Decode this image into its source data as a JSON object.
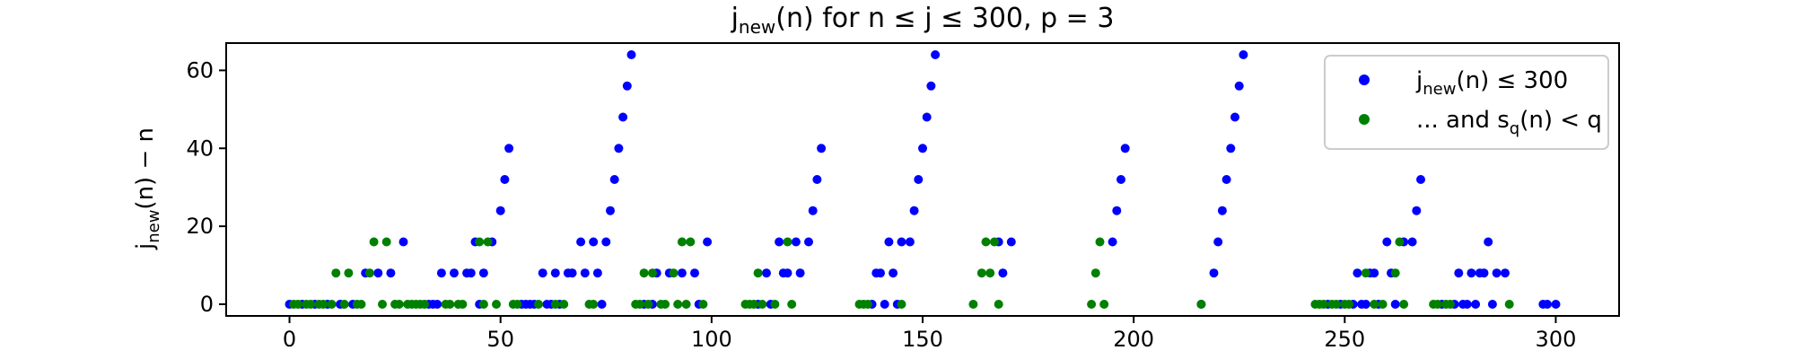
{
  "chart_data": {
    "type": "scatter",
    "title": "j_new(n) for n ≤ j ≤ 300, p = 3",
    "xlabel": "",
    "ylabel": "j_new(n) − n",
    "xlim": [
      -15,
      315
    ],
    "ylim": [
      -3,
      67
    ],
    "xticks": [
      0,
      50,
      100,
      150,
      200,
      250,
      300
    ],
    "yticks": [
      0,
      20,
      40,
      60
    ],
    "grid": false,
    "legend_position": "top-right",
    "series": [
      {
        "name": "j_new(n) ≤ 300",
        "color": "#0000ff",
        "points": [
          [
            0,
            0
          ],
          [
            3,
            0
          ],
          [
            6,
            0
          ],
          [
            9,
            0
          ],
          [
            12,
            0
          ],
          [
            15,
            0
          ],
          [
            18,
            8
          ],
          [
            21,
            8
          ],
          [
            24,
            8
          ],
          [
            27,
            16
          ],
          [
            33,
            0
          ],
          [
            34,
            0
          ],
          [
            35,
            0
          ],
          [
            36,
            8
          ],
          [
            39,
            8
          ],
          [
            42,
            8
          ],
          [
            43,
            8
          ],
          [
            44,
            16
          ],
          [
            45,
            0
          ],
          [
            46,
            8
          ],
          [
            48,
            16
          ],
          [
            50,
            24
          ],
          [
            51,
            32
          ],
          [
            52,
            40
          ],
          [
            55,
            0
          ],
          [
            56,
            0
          ],
          [
            57,
            0
          ],
          [
            58,
            0
          ],
          [
            60,
            8
          ],
          [
            61,
            0
          ],
          [
            62,
            0
          ],
          [
            63,
            8
          ],
          [
            64,
            0
          ],
          [
            66,
            8
          ],
          [
            67,
            8
          ],
          [
            69,
            16
          ],
          [
            70,
            8
          ],
          [
            72,
            16
          ],
          [
            73,
            8
          ],
          [
            74,
            0
          ],
          [
            75,
            16
          ],
          [
            76,
            24
          ],
          [
            77,
            32
          ],
          [
            78,
            40
          ],
          [
            79,
            48
          ],
          [
            80,
            56
          ],
          [
            81,
            64
          ],
          [
            84,
            0
          ],
          [
            86,
            0
          ],
          [
            87,
            8
          ],
          [
            90,
            8
          ],
          [
            93,
            8
          ],
          [
            96,
            8
          ],
          [
            97,
            0
          ],
          [
            99,
            16
          ],
          [
            111,
            0
          ],
          [
            113,
            8
          ],
          [
            114,
            0
          ],
          [
            116,
            16
          ],
          [
            117,
            8
          ],
          [
            118,
            8
          ],
          [
            120,
            16
          ],
          [
            121,
            8
          ],
          [
            123,
            16
          ],
          [
            124,
            24
          ],
          [
            125,
            32
          ],
          [
            126,
            40
          ],
          [
            138,
            0
          ],
          [
            139,
            8
          ],
          [
            140,
            8
          ],
          [
            141,
            0
          ],
          [
            142,
            16
          ],
          [
            143,
            8
          ],
          [
            144,
            0
          ],
          [
            145,
            16
          ],
          [
            147,
            16
          ],
          [
            148,
            24
          ],
          [
            149,
            32
          ],
          [
            150,
            40
          ],
          [
            151,
            48
          ],
          [
            152,
            56
          ],
          [
            153,
            64
          ],
          [
            168,
            16
          ],
          [
            169,
            8
          ],
          [
            171,
            16
          ],
          [
            195,
            16
          ],
          [
            196,
            24
          ],
          [
            197,
            32
          ],
          [
            198,
            40
          ],
          [
            216,
            0
          ],
          [
            219,
            8
          ],
          [
            220,
            16
          ],
          [
            221,
            24
          ],
          [
            222,
            32
          ],
          [
            223,
            40
          ],
          [
            224,
            48
          ],
          [
            225,
            56
          ],
          [
            226,
            64
          ],
          [
            246,
            0
          ],
          [
            249,
            0
          ],
          [
            252,
            0
          ],
          [
            253,
            8
          ],
          [
            254,
            0
          ],
          [
            255,
            0
          ],
          [
            256,
            8
          ],
          [
            257,
            8
          ],
          [
            258,
            0
          ],
          [
            260,
            16
          ],
          [
            261,
            8
          ],
          [
            262,
            0
          ],
          [
            264,
            16
          ],
          [
            266,
            16
          ],
          [
            267,
            24
          ],
          [
            268,
            32
          ],
          [
            273,
            0
          ],
          [
            276,
            0
          ],
          [
            277,
            8
          ],
          [
            278,
            0
          ],
          [
            279,
            0
          ],
          [
            280,
            8
          ],
          [
            281,
            0
          ],
          [
            282,
            8
          ],
          [
            283,
            8
          ],
          [
            284,
            16
          ],
          [
            285,
            0
          ],
          [
            286,
            8
          ],
          [
            288,
            8
          ],
          [
            297,
            0
          ],
          [
            298,
            0
          ],
          [
            300,
            0
          ]
        ]
      },
      {
        "name": "... and s_q(n) < q",
        "color": "#008000",
        "points": [
          [
            1,
            0
          ],
          [
            2,
            0
          ],
          [
            4,
            0
          ],
          [
            5,
            0
          ],
          [
            7,
            0
          ],
          [
            8,
            0
          ],
          [
            10,
            0
          ],
          [
            11,
            8
          ],
          [
            13,
            0
          ],
          [
            14,
            8
          ],
          [
            16,
            0
          ],
          [
            17,
            0
          ],
          [
            19,
            8
          ],
          [
            20,
            16
          ],
          [
            22,
            0
          ],
          [
            23,
            16
          ],
          [
            25,
            0
          ],
          [
            26,
            0
          ],
          [
            28,
            0
          ],
          [
            29,
            0
          ],
          [
            30,
            0
          ],
          [
            31,
            0
          ],
          [
            32,
            0
          ],
          [
            37,
            0
          ],
          [
            38,
            0
          ],
          [
            40,
            0
          ],
          [
            41,
            0
          ],
          [
            45,
            16
          ],
          [
            46,
            0
          ],
          [
            47,
            16
          ],
          [
            49,
            0
          ],
          [
            53,
            0
          ],
          [
            54,
            0
          ],
          [
            59,
            0
          ],
          [
            63,
            0
          ],
          [
            65,
            0
          ],
          [
            71,
            0
          ],
          [
            72,
            0
          ],
          [
            82,
            0
          ],
          [
            83,
            0
          ],
          [
            84,
            8
          ],
          [
            85,
            0
          ],
          [
            86,
            8
          ],
          [
            88,
            0
          ],
          [
            89,
            0
          ],
          [
            91,
            8
          ],
          [
            92,
            0
          ],
          [
            93,
            16
          ],
          [
            94,
            0
          ],
          [
            95,
            16
          ],
          [
            98,
            0
          ],
          [
            108,
            0
          ],
          [
            109,
            0
          ],
          [
            110,
            0
          ],
          [
            111,
            8
          ],
          [
            112,
            0
          ],
          [
            115,
            0
          ],
          [
            118,
            16
          ],
          [
            119,
            0
          ],
          [
            135,
            0
          ],
          [
            136,
            0
          ],
          [
            137,
            0
          ],
          [
            145,
            0
          ],
          [
            162,
            0
          ],
          [
            164,
            8
          ],
          [
            165,
            16
          ],
          [
            166,
            8
          ],
          [
            167,
            16
          ],
          [
            168,
            0
          ],
          [
            190,
            0
          ],
          [
            191,
            8
          ],
          [
            192,
            16
          ],
          [
            193,
            0
          ],
          [
            216,
            0
          ],
          [
            243,
            0
          ],
          [
            244,
            0
          ],
          [
            245,
            0
          ],
          [
            247,
            0
          ],
          [
            248,
            0
          ],
          [
            250,
            0
          ],
          [
            251,
            0
          ],
          [
            255,
            8
          ],
          [
            257,
            0
          ],
          [
            259,
            0
          ],
          [
            262,
            8
          ],
          [
            263,
            16
          ],
          [
            264,
            0
          ],
          [
            271,
            0
          ],
          [
            272,
            0
          ],
          [
            274,
            0
          ],
          [
            275,
            0
          ],
          [
            289,
            0
          ]
        ]
      }
    ]
  }
}
